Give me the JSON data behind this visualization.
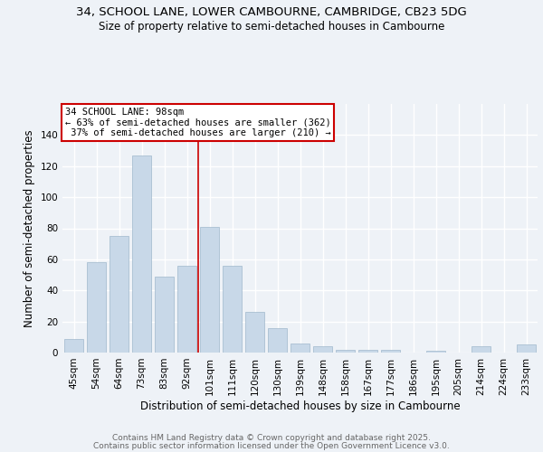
{
  "title_line1": "34, SCHOOL LANE, LOWER CAMBOURNE, CAMBRIDGE, CB23 5DG",
  "title_line2": "Size of property relative to semi-detached houses in Cambourne",
  "xlabel": "Distribution of semi-detached houses by size in Cambourne",
  "ylabel": "Number of semi-detached properties",
  "categories": [
    "45sqm",
    "54sqm",
    "64sqm",
    "73sqm",
    "83sqm",
    "92sqm",
    "101sqm",
    "111sqm",
    "120sqm",
    "130sqm",
    "139sqm",
    "148sqm",
    "158sqm",
    "167sqm",
    "177sqm",
    "186sqm",
    "195sqm",
    "205sqm",
    "214sqm",
    "224sqm",
    "233sqm"
  ],
  "values": [
    9,
    58,
    75,
    127,
    49,
    56,
    81,
    56,
    26,
    16,
    6,
    4,
    2,
    2,
    2,
    0,
    1,
    0,
    4,
    0,
    5
  ],
  "bar_color": "#c8d8e8",
  "bar_edgecolor": "#a0b8cc",
  "subject_label": "34 SCHOOL LANE: 98sqm",
  "pct_smaller": 63,
  "pct_smaller_n": 362,
  "pct_larger": 37,
  "pct_larger_n": 210,
  "vline_color": "#cc0000",
  "annotation_box_edgecolor": "#cc0000",
  "ylim": [
    0,
    160
  ],
  "yticks": [
    0,
    20,
    40,
    60,
    80,
    100,
    120,
    140
  ],
  "vline_x": 5.5,
  "footer_line1": "Contains HM Land Registry data © Crown copyright and database right 2025.",
  "footer_line2": "Contains public sector information licensed under the Open Government Licence v3.0.",
  "background_color": "#eef2f7",
  "grid_color": "#ffffff",
  "title_fontsize": 9.5,
  "subtitle_fontsize": 8.5,
  "axis_label_fontsize": 8.5,
  "tick_fontsize": 7.5,
  "footer_fontsize": 6.5,
  "annotation_fontsize": 7.5
}
